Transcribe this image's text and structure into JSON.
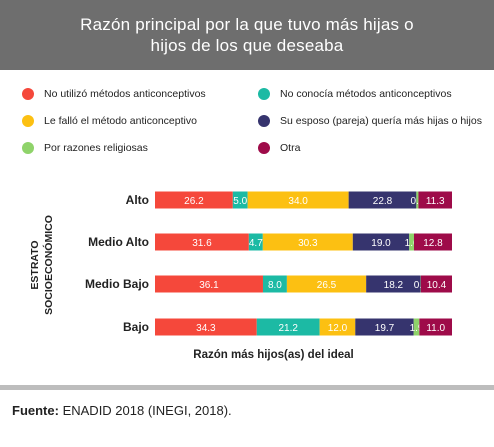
{
  "chart_data": {
    "type": "bar",
    "orientation": "horizontal",
    "stacked": true,
    "title": "Razón principal por la que tuvo más hijas o hijos de los que deseaba",
    "xlabel": "Razón más hijos(as) del ideal",
    "ylabel": "ESTRATO SOCIOECONÓMICO",
    "categories": [
      "Alto",
      "Medio Alto",
      "Medio Bajo",
      "Bajo"
    ],
    "legend_position": "top",
    "grid": false,
    "series": [
      {
        "name": "No utilizó métodos anticonceptivos",
        "color": "#f5483b",
        "values": [
          26.2,
          31.6,
          36.1,
          34.3
        ],
        "labels": [
          "26.2",
          "31.6",
          "36.1",
          "34.3"
        ]
      },
      {
        "name": "No conocía métodos anticonceptivos",
        "color": "#1cbaa4",
        "values": [
          5.0,
          4.7,
          8.0,
          21.2
        ],
        "labels": [
          "5.0",
          "4.7",
          "8.0",
          "21.2"
        ]
      },
      {
        "name": "Le falló el método anticonceptivo",
        "color": "#fcc012",
        "values": [
          34.0,
          30.3,
          26.5,
          12.0
        ],
        "labels": [
          "34.0",
          "30.3",
          "26.5",
          "12.0"
        ]
      },
      {
        "name": "Su esposo (pareja) quería más hijas o hijos",
        "color": "#36346e",
        "values": [
          22.8,
          19.0,
          18.2,
          19.7
        ],
        "labels": [
          "22.8",
          "19.0",
          "18.2",
          "19.7"
        ]
      },
      {
        "name": "Por razones religiosas",
        "color": "#8fd36a",
        "values": [
          0.7,
          1.6,
          0.1,
          1.9
        ],
        "labels": [
          "0.7",
          "1.6",
          "0.1",
          "1.9"
        ]
      },
      {
        "name": "Otra",
        "color": "#9e0b49",
        "values": [
          11.3,
          12.8,
          10.4,
          11.0
        ],
        "labels": [
          "11.3",
          "12.8",
          "10.4",
          "11.0"
        ]
      }
    ]
  },
  "legend_order": [
    0,
    1,
    2,
    3,
    4,
    5
  ],
  "source": {
    "label": "Fuente:",
    "text": "ENADID 2018 (INEGI, 2018)."
  }
}
